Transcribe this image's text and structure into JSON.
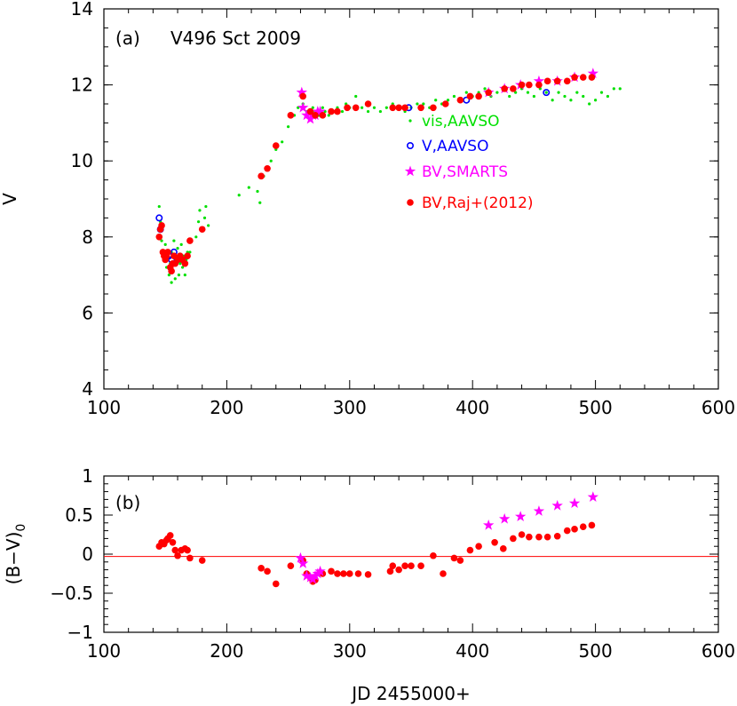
{
  "colors": {
    "vis": "#00e000",
    "v_aavso": "#0000ff",
    "smarts": "#ff00ff",
    "raj": "#ff0000",
    "refline": "#ff0000"
  },
  "xlabel": "JD 2455000+",
  "chart_data": [
    {
      "type": "scatter",
      "panel_label": "(a)",
      "title": "V496 Sct 2009",
      "xlabel": "",
      "ylabel": "V",
      "xlim": [
        100,
        600
      ],
      "ylim": [
        14,
        4
      ],
      "xticks": [
        "100",
        "200",
        "300",
        "400",
        "500",
        "600"
      ],
      "yticks": [
        "4",
        "6",
        "8",
        "10",
        "12",
        "14"
      ],
      "legend_position": "top-right",
      "series": [
        {
          "name": "vis,AAVSO",
          "marker": "dot",
          "points": [
            [
              145,
              8.8
            ],
            [
              146,
              8.4
            ],
            [
              147,
              7.9
            ],
            [
              148,
              7.6
            ],
            [
              149,
              7.4
            ],
            [
              150,
              7.8
            ],
            [
              151,
              7.2
            ],
            [
              152,
              7.5
            ],
            [
              153,
              7.0
            ],
            [
              154,
              7.3
            ],
            [
              155,
              6.8
            ],
            [
              155,
              7.6
            ],
            [
              156,
              7.1
            ],
            [
              157,
              7.9
            ],
            [
              158,
              6.9
            ],
            [
              159,
              7.4
            ],
            [
              160,
              7.7
            ],
            [
              161,
              7.0
            ],
            [
              162,
              7.3
            ],
            [
              163,
              7.8
            ],
            [
              164,
              7.2
            ],
            [
              165,
              7.5
            ],
            [
              166,
              7.0
            ],
            [
              167,
              7.4
            ],
            [
              168,
              7.6
            ],
            [
              169,
              7.9
            ],
            [
              170,
              7.6
            ],
            [
              175,
              8.0
            ],
            [
              177,
              8.4
            ],
            [
              178,
              8.7
            ],
            [
              180,
              8.2
            ],
            [
              182,
              8.5
            ],
            [
              183,
              8.8
            ],
            [
              185,
              8.3
            ],
            [
              210,
              9.1
            ],
            [
              218,
              9.3
            ],
            [
              225,
              9.2
            ],
            [
              227,
              8.9
            ],
            [
              230,
              9.6
            ],
            [
              233,
              9.8
            ],
            [
              236,
              10.0
            ],
            [
              240,
              10.3
            ],
            [
              245,
              10.5
            ],
            [
              250,
              10.9
            ],
            [
              255,
              11.2
            ],
            [
              258,
              11.4
            ],
            [
              262,
              11.5
            ],
            [
              265,
              11.3
            ],
            [
              270,
              11.4
            ],
            [
              272,
              11.3
            ],
            [
              275,
              11.2
            ],
            [
              278,
              11.4
            ],
            [
              280,
              11.3
            ],
            [
              283,
              11.2
            ],
            [
              286,
              11.3
            ],
            [
              290,
              11.4
            ],
            [
              294,
              11.3
            ],
            [
              297,
              11.5
            ],
            [
              300,
              11.4
            ],
            [
              305,
              11.7
            ],
            [
              310,
              11.4
            ],
            [
              315,
              11.3
            ],
            [
              320,
              11.4
            ],
            [
              325,
              11.3
            ],
            [
              330,
              11.4
            ],
            [
              335,
              11.5
            ],
            [
              340,
              11.4
            ],
            [
              345,
              11.3
            ],
            [
              350,
              11.4
            ],
            [
              355,
              11.5
            ],
            [
              360,
              11.5
            ],
            [
              365,
              11.4
            ],
            [
              370,
              11.6
            ],
            [
              375,
              11.5
            ],
            [
              380,
              11.6
            ],
            [
              385,
              11.7
            ],
            [
              390,
              11.6
            ],
            [
              395,
              11.8
            ],
            [
              400,
              11.7
            ],
            [
              405,
              11.8
            ],
            [
              410,
              11.9
            ],
            [
              415,
              11.7
            ],
            [
              420,
              11.8
            ],
            [
              425,
              11.9
            ],
            [
              430,
              11.7
            ],
            [
              435,
              11.8
            ],
            [
              440,
              11.9
            ],
            [
              445,
              11.8
            ],
            [
              450,
              11.7
            ],
            [
              455,
              11.9
            ],
            [
              460,
              11.8
            ],
            [
              465,
              11.6
            ],
            [
              470,
              11.8
            ],
            [
              475,
              11.7
            ],
            [
              480,
              11.6
            ],
            [
              485,
              11.8
            ],
            [
              490,
              11.7
            ],
            [
              495,
              11.5
            ],
            [
              500,
              11.6
            ],
            [
              505,
              11.8
            ],
            [
              510,
              11.7
            ],
            [
              515,
              11.9
            ],
            [
              520,
              11.9
            ]
          ]
        },
        {
          "name": "V,AAVSO",
          "marker": "circle",
          "points": [
            [
              145,
              8.5
            ],
            [
              146,
              8.2
            ],
            [
              153,
              7.5
            ],
            [
              155,
              7.4
            ],
            [
              157,
              7.6
            ],
            [
              348,
              11.4
            ],
            [
              395,
              11.6
            ],
            [
              460,
              11.8
            ]
          ]
        },
        {
          "name": "BV,SMARTS",
          "marker": "star",
          "points": [
            [
              261,
              11.8
            ],
            [
              262,
              11.4
            ],
            [
              265,
              11.2
            ],
            [
              268,
              11.1
            ],
            [
              270,
              11.2
            ],
            [
              272,
              11.2
            ],
            [
              274,
              11.3
            ],
            [
              276,
              11.3
            ],
            [
              413,
              11.8
            ],
            [
              426,
              11.9
            ],
            [
              439,
              12.0
            ],
            [
              454,
              12.1
            ],
            [
              469,
              12.1
            ],
            [
              483,
              12.2
            ],
            [
              498,
              12.3
            ]
          ]
        },
        {
          "name": "BV,Raj+(2012)",
          "marker": "filled",
          "points": [
            [
              145,
              8.0
            ],
            [
              146,
              8.2
            ],
            [
              147,
              8.3
            ],
            [
              148,
              7.6
            ],
            [
              149,
              7.5
            ],
            [
              150,
              7.4
            ],
            [
              151,
              7.5
            ],
            [
              152,
              7.6
            ],
            [
              154,
              7.2
            ],
            [
              155,
              7.1
            ],
            [
              156,
              7.3
            ],
            [
              157,
              7.5
            ],
            [
              158,
              7.3
            ],
            [
              160,
              7.4
            ],
            [
              162,
              7.5
            ],
            [
              164,
              7.4
            ],
            [
              166,
              7.3
            ],
            [
              168,
              7.5
            ],
            [
              170,
              7.9
            ],
            [
              180,
              8.2
            ],
            [
              228,
              9.6
            ],
            [
              233,
              9.8
            ],
            [
              240,
              10.4
            ],
            [
              252,
              11.2
            ],
            [
              262,
              11.7
            ],
            [
              268,
              11.3
            ],
            [
              272,
              11.2
            ],
            [
              278,
              11.2
            ],
            [
              285,
              11.3
            ],
            [
              290,
              11.3
            ],
            [
              298,
              11.4
            ],
            [
              305,
              11.4
            ],
            [
              315,
              11.5
            ],
            [
              335,
              11.4
            ],
            [
              340,
              11.4
            ],
            [
              345,
              11.4
            ],
            [
              358,
              11.4
            ],
            [
              368,
              11.4
            ],
            [
              378,
              11.5
            ],
            [
              390,
              11.6
            ],
            [
              398,
              11.7
            ],
            [
              405,
              11.7
            ],
            [
              413,
              11.8
            ],
            [
              426,
              11.9
            ],
            [
              433,
              11.9
            ],
            [
              440,
              12.0
            ],
            [
              446,
              12.0
            ],
            [
              454,
              12.0
            ],
            [
              461,
              12.1
            ],
            [
              469,
              12.1
            ],
            [
              477,
              12.1
            ],
            [
              483,
              12.2
            ],
            [
              490,
              12.2
            ],
            [
              497,
              12.2
            ]
          ]
        }
      ]
    },
    {
      "type": "scatter",
      "panel_label": "(b)",
      "xlabel": "JD 2455000+",
      "ylabel": "(B−V)",
      "ylabel_subscript": "0",
      "xlim": [
        100,
        600
      ],
      "ylim": [
        1,
        -1
      ],
      "xticks": [
        "100",
        "200",
        "300",
        "400",
        "500",
        "600"
      ],
      "yticks": [
        "−1",
        "−0.5",
        "0",
        "0.5",
        "1"
      ],
      "reference_line_y": -0.03,
      "series": [
        {
          "name": "BV,Raj+(2012)",
          "marker": "filled",
          "points": [
            [
              145,
              0.1
            ],
            [
              147,
              0.15
            ],
            [
              149,
              0.13
            ],
            [
              151,
              0.18
            ],
            [
              152,
              0.2
            ],
            [
              154,
              0.24
            ],
            [
              156,
              0.15
            ],
            [
              158,
              0.05
            ],
            [
              160,
              -0.02
            ],
            [
              163,
              0.05
            ],
            [
              166,
              0.07
            ],
            [
              168,
              0.05
            ],
            [
              170,
              -0.05
            ],
            [
              180,
              -0.08
            ],
            [
              228,
              -0.18
            ],
            [
              233,
              -0.22
            ],
            [
              240,
              -0.38
            ],
            [
              252,
              -0.15
            ],
            [
              262,
              -0.08
            ],
            [
              265,
              -0.25
            ],
            [
              268,
              -0.3
            ],
            [
              270,
              -0.35
            ],
            [
              272,
              -0.33
            ],
            [
              278,
              -0.25
            ],
            [
              285,
              -0.22
            ],
            [
              290,
              -0.25
            ],
            [
              295,
              -0.25
            ],
            [
              300,
              -0.25
            ],
            [
              307,
              -0.25
            ],
            [
              315,
              -0.26
            ],
            [
              333,
              -0.22
            ],
            [
              335,
              -0.15
            ],
            [
              340,
              -0.2
            ],
            [
              345,
              -0.15
            ],
            [
              350,
              -0.15
            ],
            [
              358,
              -0.15
            ],
            [
              368,
              -0.02
            ],
            [
              376,
              -0.25
            ],
            [
              385,
              -0.05
            ],
            [
              390,
              -0.08
            ],
            [
              398,
              0.05
            ],
            [
              405,
              0.1
            ],
            [
              418,
              0.15
            ],
            [
              425,
              0.07
            ],
            [
              433,
              0.2
            ],
            [
              440,
              0.25
            ],
            [
              446,
              0.22
            ],
            [
              454,
              0.22
            ],
            [
              461,
              0.22
            ],
            [
              469,
              0.23
            ],
            [
              477,
              0.3
            ],
            [
              483,
              0.32
            ],
            [
              490,
              0.35
            ],
            [
              497,
              0.37
            ]
          ]
        },
        {
          "name": "BV,SMARTS",
          "marker": "star",
          "points": [
            [
              260,
              -0.05
            ],
            [
              262,
              -0.12
            ],
            [
              265,
              -0.28
            ],
            [
              268,
              -0.3
            ],
            [
              270,
              -0.32
            ],
            [
              272,
              -0.28
            ],
            [
              274,
              -0.25
            ],
            [
              276,
              -0.22
            ],
            [
              413,
              0.37
            ],
            [
              426,
              0.45
            ],
            [
              439,
              0.48
            ],
            [
              454,
              0.55
            ],
            [
              469,
              0.62
            ],
            [
              483,
              0.65
            ],
            [
              498,
              0.73
            ]
          ]
        }
      ]
    }
  ]
}
